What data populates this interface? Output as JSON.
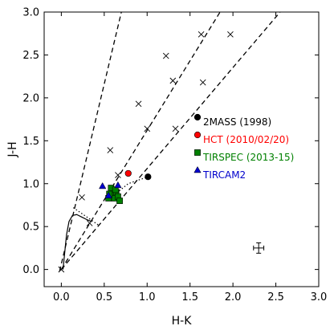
{
  "chart_data": {
    "type": "scatter",
    "xlabel": "H-K",
    "ylabel": "J-H",
    "xlim": [
      -0.2,
      3.0
    ],
    "ylim": [
      -0.2,
      3.0
    ],
    "xticks": [
      0.0,
      0.5,
      1.0,
      1.5,
      2.0,
      2.5,
      3.0
    ],
    "yticks": [
      0.0,
      0.5,
      1.0,
      1.5,
      2.0,
      2.5,
      3.0
    ],
    "xtick_labels": [
      "0.0",
      "0.5",
      "1.0",
      "1.5",
      "2.0",
      "2.5",
      "3.0"
    ],
    "ytick_labels": [
      "0.0",
      "0.5",
      "1.0",
      "1.5",
      "2.0",
      "2.5",
      "3.0"
    ],
    "grid": false,
    "legend_position": "right-middle",
    "reddening_lines": [
      {
        "start": [
          -0.02,
          -0.02
        ],
        "end": [
          0.7,
          3.0
        ],
        "marks": [
          [
            0.24,
            0.84
          ],
          [
            0.57,
            1.39
          ],
          [
            0.9,
            1.93
          ],
          [
            1.22,
            2.49
          ],
          [
            1.63,
            2.74
          ]
        ]
      },
      {
        "start": [
          0.0,
          0.0
        ],
        "end": [
          1.85,
          3.0
        ],
        "marks": [
          [
            0.33,
            0.54
          ],
          [
            0.66,
            1.1
          ],
          [
            1.0,
            1.64
          ],
          [
            1.3,
            2.2
          ],
          [
            1.97,
            2.74
          ]
        ]
      },
      {
        "start": [
          0.0,
          0.0
        ],
        "end": [
          2.55,
          3.0
        ],
        "marks": [
          [
            0.0,
            0.0
          ],
          [
            1.33,
            1.64
          ],
          [
            1.65,
            2.18
          ]
        ]
      }
    ],
    "dotted_lines": [
      [
        [
          0.14,
          0.72
        ],
        [
          0.43,
          0.52
        ]
      ],
      [
        [
          0.53,
          0.8
        ],
        [
          0.78,
          1.0
        ],
        [
          1.01,
          1.08
        ]
      ]
    ],
    "intrinsic_locus": [
      [
        0.02,
        0.0
      ],
      [
        0.04,
        0.2
      ],
      [
        0.06,
        0.4
      ],
      [
        0.09,
        0.56
      ],
      [
        0.13,
        0.63
      ],
      [
        0.18,
        0.64
      ],
      [
        0.24,
        0.61
      ],
      [
        0.3,
        0.58
      ],
      [
        0.35,
        0.56
      ]
    ],
    "series": [
      {
        "name": "2MASS (1998)",
        "marker": "circle",
        "color": "#000000",
        "points": [
          [
            1.01,
            1.08
          ]
        ]
      },
      {
        "name": "HCT (2010/02/20)",
        "marker": "circle",
        "color": "#ff0000",
        "points": [
          [
            0.78,
            1.12
          ]
        ]
      },
      {
        "name": "TIRSPEC (2013-15)",
        "marker": "square",
        "color": "#008000",
        "points": [
          [
            0.55,
            0.83
          ],
          [
            0.58,
            0.95
          ],
          [
            0.6,
            0.88
          ],
          [
            0.62,
            0.83
          ],
          [
            0.64,
            0.9
          ],
          [
            0.66,
            0.85
          ],
          [
            0.68,
            0.8
          ],
          [
            0.56,
            0.88
          ],
          [
            0.63,
            0.93
          ]
        ]
      },
      {
        "name": "TIRCAM2",
        "marker": "triangle",
        "color": "#0000cc",
        "points": [
          [
            0.48,
            0.97
          ],
          [
            0.55,
            0.86
          ],
          [
            0.66,
            0.98
          ]
        ]
      }
    ],
    "error_bar": {
      "x": 2.3,
      "y": 0.25,
      "xerr": 0.06,
      "yerr": 0.06
    }
  }
}
